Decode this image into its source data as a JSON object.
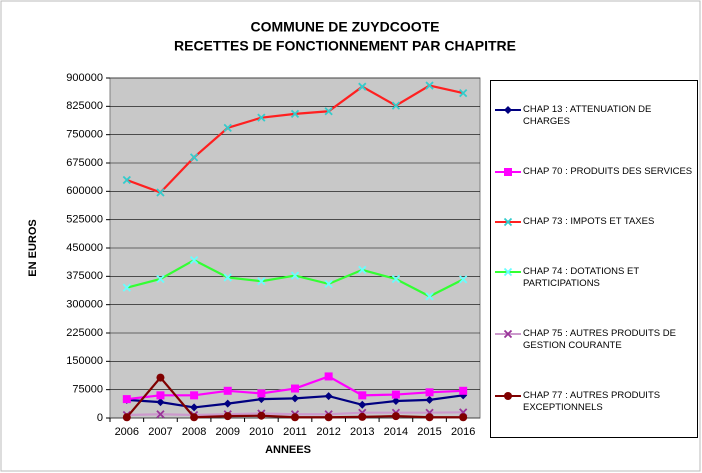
{
  "chart_data": {
    "type": "line",
    "title": "COMMUNE DE ZUYDCOOTE",
    "subtitle": "RECETTES DE FONCTIONNEMENT PAR CHAPITRE",
    "x_label": "ANNEES",
    "y_label": "EN EUROS",
    "categories": [
      "2006",
      "2007",
      "2008",
      "2009",
      "2010",
      "2011",
      "2012",
      "2013",
      "2014",
      "2015",
      "2016"
    ],
    "ylim": [
      0,
      900000
    ],
    "yticks": [
      0,
      75000,
      150000,
      225000,
      300000,
      375000,
      450000,
      525000,
      600000,
      675000,
      750000,
      825000,
      900000
    ],
    "grid": true,
    "legend": "right",
    "series": [
      {
        "name": "CHAP 13 : ATTENUATION DE CHARGES",
        "color": "#000080",
        "marker": "diamond",
        "marker_color": "#000080",
        "values": [
          48000,
          42000,
          28000,
          38000,
          50000,
          52000,
          58000,
          35000,
          45000,
          48000,
          60000
        ]
      },
      {
        "name": "CHAP 70 : PRODUITS DES SERVICES",
        "color": "#ff00ff",
        "marker": "square",
        "marker_color": "#ff00ff",
        "values": [
          50000,
          60000,
          60000,
          72000,
          65000,
          78000,
          110000,
          60000,
          62000,
          68000,
          72000
        ]
      },
      {
        "name": "CHAP 73 : IMPOTS ET TAXES",
        "color": "#ff2020",
        "marker": "x",
        "marker_color": "#33cccc",
        "values": [
          630000,
          597000,
          690000,
          768000,
          795000,
          805000,
          812000,
          877000,
          827000,
          880000,
          860000
        ]
      },
      {
        "name": "CHAP 74 : DOTATIONS ET PARTICIPATIONS",
        "color": "#33ff33",
        "marker": "x",
        "marker_color": "#66ffff",
        "values": [
          345000,
          368000,
          418000,
          372000,
          362000,
          377000,
          355000,
          392000,
          368000,
          322000,
          367000
        ]
      },
      {
        "name": "CHAP 75 : AUTRES PRODUITS DE GESTION COURANTE",
        "color": "#cc99cc",
        "marker": "x",
        "marker_color": "#993399",
        "values": [
          8000,
          10000,
          8000,
          10000,
          12000,
          10000,
          10000,
          14000,
          14000,
          14000,
          15000
        ]
      },
      {
        "name": "CHAP 77 : AUTRES PRODUITS EXCEPTIONNELS",
        "color": "#800000",
        "marker": "circle",
        "marker_color": "#800000",
        "values": [
          2000,
          107000,
          2000,
          5000,
          6000,
          2000,
          2000,
          3000,
          5000,
          2000,
          2000
        ]
      }
    ]
  }
}
